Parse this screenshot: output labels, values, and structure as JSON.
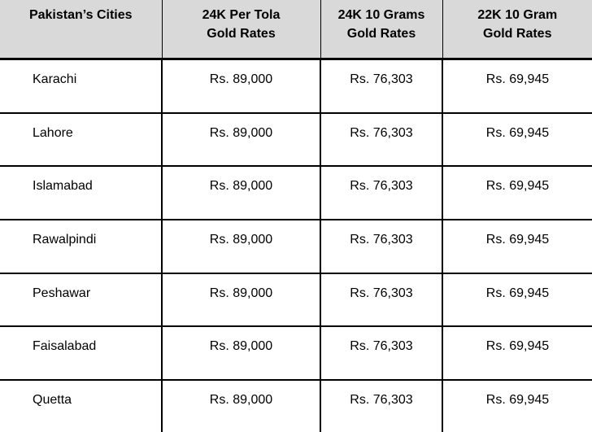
{
  "colors": {
    "header_bg": "#d9d9d9",
    "border": "#000000",
    "text": "#000000",
    "body_bg": "#ffffff"
  },
  "table": {
    "headers": [
      {
        "lines": [
          "Pakistan’s Cities"
        ]
      },
      {
        "lines": [
          "24K Per Tola",
          "Gold Rates"
        ]
      },
      {
        "lines": [
          "24K 10 Grams",
          "Gold Rates"
        ]
      },
      {
        "lines": [
          "22K 10 Gram",
          "Gold Rates"
        ]
      }
    ],
    "rows": [
      {
        "city": "Karachi",
        "rate_24k_tola": "Rs. 89,000",
        "rate_24k_10g": "Rs. 76,303",
        "rate_22k_10g": "Rs. 69,945"
      },
      {
        "city": "Lahore",
        "rate_24k_tola": "Rs. 89,000",
        "rate_24k_10g": "Rs. 76,303",
        "rate_22k_10g": "Rs. 69,945"
      },
      {
        "city": "Islamabad",
        "rate_24k_tola": "Rs. 89,000",
        "rate_24k_10g": "Rs. 76,303",
        "rate_22k_10g": "Rs. 69,945"
      },
      {
        "city": "Rawalpindi",
        "rate_24k_tola": "Rs. 89,000",
        "rate_24k_10g": "Rs. 76,303",
        "rate_22k_10g": "Rs. 69,945"
      },
      {
        "city": "Peshawar",
        "rate_24k_tola": "Rs. 89,000",
        "rate_24k_10g": "Rs. 76,303",
        "rate_22k_10g": "Rs. 69,945"
      },
      {
        "city": "Faisalabad",
        "rate_24k_tola": "Rs. 89,000",
        "rate_24k_10g": "Rs. 76,303",
        "rate_22k_10g": "Rs. 69,945"
      },
      {
        "city": "Quetta",
        "rate_24k_tola": "Rs. 89,000",
        "rate_24k_10g": "Rs. 76,303",
        "rate_22k_10g": "Rs. 69,945"
      }
    ]
  },
  "chart_data": {
    "type": "table",
    "columns": [
      "Pakistan’s Cities",
      "24K Per Tola Gold Rates",
      "24K 10 Grams Gold Rates",
      "22K 10 Gram Gold Rates"
    ],
    "rows": [
      [
        "Karachi",
        "Rs. 89,000",
        "Rs. 76,303",
        "Rs. 69,945"
      ],
      [
        "Lahore",
        "Rs. 89,000",
        "Rs. 76,303",
        "Rs. 69,945"
      ],
      [
        "Islamabad",
        "Rs. 89,000",
        "Rs. 76,303",
        "Rs. 69,945"
      ],
      [
        "Rawalpindi",
        "Rs. 89,000",
        "Rs. 76,303",
        "Rs. 69,945"
      ],
      [
        "Peshawar",
        "Rs. 89,000",
        "Rs. 76,303",
        "Rs. 69,945"
      ],
      [
        "Faisalabad",
        "Rs. 89,000",
        "Rs. 76,303",
        "Rs. 69,945"
      ],
      [
        "Quetta",
        "Rs. 89,000",
        "Rs. 76,303",
        "Rs. 69,945"
      ]
    ],
    "values": {
      "rate_24k_per_tola_pkr": 89000,
      "rate_24k_10_grams_pkr": 76303,
      "rate_22k_10_gram_pkr": 69945
    }
  }
}
